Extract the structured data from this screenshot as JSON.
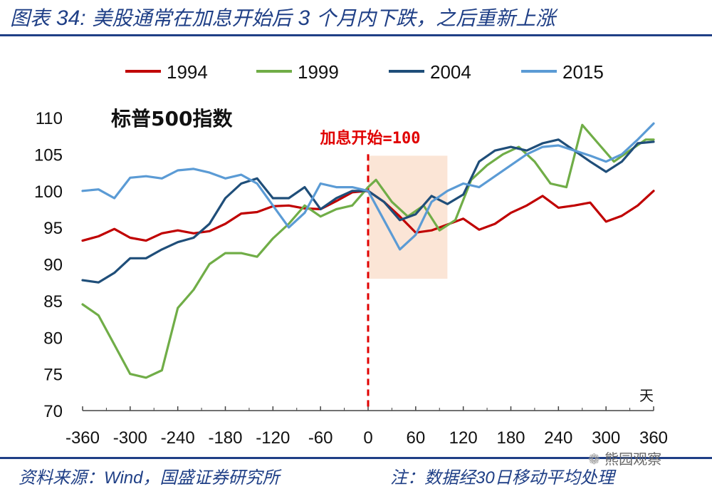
{
  "header": {
    "title_prefix": "图表",
    "title_num": "34:",
    "title_main": "美股通常在加息开始后",
    "title_num2": "3",
    "title_tail": "个月内下跌，之后重新上涨"
  },
  "footer": {
    "source_prefix": "资料来源：",
    "source_wind": "Wind",
    "source_tail": "，国盛证券研究所",
    "note_prefix": "注：数据经",
    "note_num": "30",
    "note_tail": "日移动平均处理"
  },
  "watermark": {
    "text": "熊园观察"
  },
  "colors": {
    "title": "#1f3f86",
    "s1994": "#c00000",
    "s1999": "#70ad47",
    "s2004": "#1f4e79",
    "s2015": "#5b9bd5",
    "highlight": "#fbe5d6",
    "marker": "#e00000"
  },
  "chart_data": {
    "type": "line",
    "title": "标普500指数",
    "xlabel": "天",
    "annotation": "加息开始=100",
    "xlim": [
      -360,
      360
    ],
    "ylim": [
      70,
      110
    ],
    "xticks": [
      -360,
      -300,
      -240,
      -180,
      -120,
      -60,
      0,
      60,
      120,
      180,
      240,
      300,
      360
    ],
    "yticks": [
      70,
      75,
      80,
      85,
      90,
      95,
      100,
      105,
      110
    ],
    "highlight_range": [
      0,
      100
    ],
    "legend_position": "top",
    "series": [
      {
        "name": "1994",
        "x": [
          -360,
          -340,
          -320,
          -300,
          -280,
          -260,
          -240,
          -220,
          -200,
          -180,
          -160,
          -140,
          -120,
          -100,
          -80,
          -60,
          -40,
          -20,
          0,
          20,
          40,
          60,
          80,
          100,
          120,
          140,
          160,
          180,
          200,
          220,
          240,
          260,
          280,
          300,
          320,
          340,
          360
        ],
        "y": [
          93.2,
          93.8,
          94.8,
          93.6,
          93.2,
          94.2,
          94.6,
          94.2,
          94.5,
          95.5,
          96.9,
          97.1,
          97.9,
          98.0,
          97.6,
          97.5,
          98.6,
          99.8,
          100,
          98.5,
          96.5,
          94.3,
          94.6,
          95.4,
          96.2,
          94.7,
          95.5,
          97.0,
          98.0,
          99.3,
          97.7,
          98.0,
          98.4,
          95.8,
          96.6,
          98.0,
          100.0
        ]
      },
      {
        "name": "1999",
        "x": [
          -360,
          -340,
          -320,
          -300,
          -280,
          -260,
          -240,
          -220,
          -200,
          -180,
          -160,
          -140,
          -120,
          -100,
          -80,
          -60,
          -40,
          -20,
          0,
          10,
          30,
          50,
          70,
          90,
          110,
          130,
          150,
          170,
          190,
          210,
          230,
          250,
          270,
          290,
          310,
          330,
          350,
          360
        ],
        "y": [
          84.5,
          83,
          79,
          75,
          74.5,
          75.5,
          84,
          86.5,
          90,
          91.5,
          91.5,
          91,
          93.5,
          95.5,
          98,
          96.5,
          97.5,
          98,
          100.5,
          101.5,
          98.5,
          96.5,
          98,
          94.6,
          96,
          101.5,
          103.5,
          105,
          106,
          104,
          101,
          100.5,
          109,
          106.5,
          104,
          105.5,
          107,
          107
        ]
      },
      {
        "name": "2004",
        "x": [
          -360,
          -340,
          -320,
          -300,
          -280,
          -260,
          -240,
          -220,
          -200,
          -180,
          -160,
          -140,
          -120,
          -100,
          -80,
          -60,
          -40,
          -20,
          0,
          20,
          40,
          60,
          80,
          100,
          120,
          140,
          160,
          180,
          200,
          220,
          240,
          260,
          280,
          300,
          320,
          340,
          360
        ],
        "y": [
          87.8,
          87.5,
          88.8,
          90.8,
          90.8,
          92.0,
          93.0,
          93.6,
          95.5,
          99.0,
          101.0,
          101.7,
          99.0,
          99.0,
          100.5,
          97.5,
          99.0,
          100.0,
          100,
          98.5,
          96.0,
          96.8,
          99.3,
          98.2,
          99.5,
          104.0,
          105.5,
          106.0,
          105.5,
          106.5,
          107.0,
          105.5,
          104.0,
          102.6,
          104.0,
          106.5,
          106.7
        ]
      },
      {
        "name": "2015",
        "x": [
          -360,
          -340,
          -320,
          -300,
          -280,
          -260,
          -240,
          -220,
          -200,
          -180,
          -160,
          -140,
          -120,
          -100,
          -80,
          -60,
          -40,
          -20,
          0,
          20,
          40,
          60,
          80,
          100,
          120,
          140,
          160,
          180,
          200,
          220,
          240,
          260,
          280,
          300,
          320,
          340,
          360
        ],
        "y": [
          100.0,
          100.2,
          99.0,
          101.8,
          102.0,
          101.7,
          102.8,
          103.0,
          102.5,
          101.7,
          102.2,
          101.0,
          98.0,
          95.0,
          97.0,
          101.0,
          100.5,
          100.5,
          100,
          96.0,
          92.0,
          94.0,
          98.5,
          100.0,
          101.0,
          100.5,
          102.0,
          103.5,
          105.0,
          106.0,
          106.2,
          105.5,
          104.8,
          104.0,
          105.0,
          107.0,
          109.2
        ]
      }
    ]
  }
}
